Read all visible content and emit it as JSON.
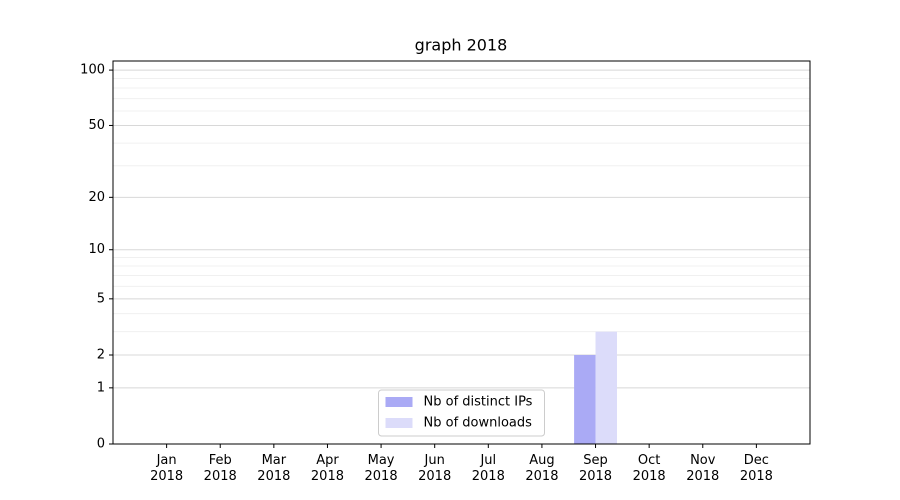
{
  "chart_data": {
    "type": "bar",
    "title": "graph 2018",
    "scale": "log1p",
    "categories": [
      "Jan\n2018",
      "Feb\n2018",
      "Mar\n2018",
      "Apr\n2018",
      "May\n2018",
      "Jun\n2018",
      "Jul\n2018",
      "Aug\n2018",
      "Sep\n2018",
      "Oct\n2018",
      "Nov\n2018",
      "Dec\n2018"
    ],
    "series": [
      {
        "name": "Nb of distinct IPs",
        "color": "#aaaaf5",
        "values": [
          0,
          0,
          0,
          0,
          0,
          0,
          0,
          0,
          2,
          0,
          0,
          0
        ]
      },
      {
        "name": "Nb of downloads",
        "color": "#dcdcfa",
        "values": [
          0,
          0,
          0,
          0,
          0,
          0,
          0,
          0,
          3,
          0,
          0,
          0
        ]
      }
    ],
    "ylim": [
      0,
      112
    ],
    "yticks": [
      0,
      1,
      2,
      5,
      10,
      20,
      50,
      100
    ],
    "minor_yticks": [
      3,
      4,
      6,
      7,
      8,
      9,
      30,
      40,
      60,
      70,
      80,
      90
    ],
    "grid": true,
    "legend": "lower center"
  }
}
